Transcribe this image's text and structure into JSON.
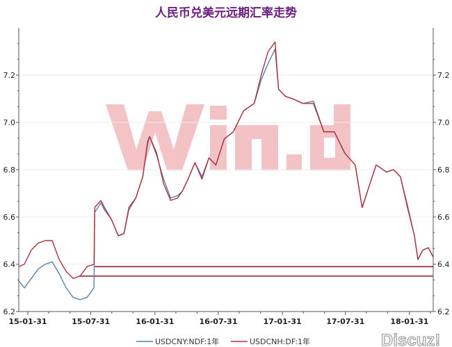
{
  "title": "人民币兑美元远期汇率走势",
  "watermarks": {
    "brand": "Win.d",
    "forum": "Discuz!"
  },
  "chart_data": {
    "type": "line",
    "title": "人民币兑美元远期汇率走势",
    "xlabel": "",
    "ylabel": "",
    "ylim": [
      6.2,
      7.4
    ],
    "y_ticks": [
      "6.2",
      "6.4",
      "6.6",
      "6.8",
      "7.0",
      "7.2"
    ],
    "y_axes": "left and right (mirrored)",
    "x_ticks": [
      "15-01-31",
      "15-07-31",
      "16-01-31",
      "16-07-31",
      "17-01-31",
      "17-07-31",
      "18-01-31"
    ],
    "x_tick_dates": [
      "2015-01-31",
      "2015-07-31",
      "2016-01-31",
      "2016-07-31",
      "2017-01-31",
      "2017-07-31",
      "2018-01-31"
    ],
    "xlim": [
      "2015-01-05",
      "2018-04-09"
    ],
    "grid": "horizontal",
    "legend": "bottom",
    "series": [
      {
        "name": "USDCNY:NDF:1年",
        "color": "#5b7fa6",
        "points": [
          [
            "2015-01-05",
            6.33
          ],
          [
            "2015-01-21",
            6.3
          ],
          [
            "2015-02-10",
            6.34
          ],
          [
            "2015-03-02",
            6.38
          ],
          [
            "2015-03-22",
            6.4
          ],
          [
            "2015-04-11",
            6.41
          ],
          [
            "2015-05-01",
            6.36
          ],
          [
            "2015-05-21",
            6.3
          ],
          [
            "2015-06-10",
            6.26
          ],
          [
            "2015-06-30",
            6.25
          ],
          [
            "2015-07-20",
            6.26
          ],
          [
            "2015-08-09",
            6.3
          ],
          [
            "2015-08-11",
            6.62
          ],
          [
            "2015-08-29",
            6.66
          ],
          [
            "2015-09-08",
            6.63
          ],
          [
            "2015-09-28",
            6.59
          ],
          [
            "2015-10-18",
            6.52
          ],
          [
            "2015-11-03",
            6.53
          ],
          [
            "2015-11-17",
            6.63
          ],
          [
            "2015-12-07",
            6.68
          ],
          [
            "2015-12-27",
            6.77
          ],
          [
            "2016-01-10",
            6.91
          ],
          [
            "2016-01-16",
            6.94
          ],
          [
            "2016-02-05",
            6.86
          ],
          [
            "2016-02-25",
            6.76
          ],
          [
            "2016-03-16",
            6.68
          ],
          [
            "2016-04-05",
            6.69
          ],
          [
            "2016-04-19",
            6.71
          ],
          [
            "2016-05-05",
            6.76
          ],
          [
            "2016-05-25",
            6.83
          ],
          [
            "2016-06-14",
            6.77
          ],
          [
            "2016-07-04",
            6.85
          ],
          [
            "2016-07-24",
            6.82
          ],
          [
            "2016-08-17",
            6.93
          ],
          [
            "2016-09-12",
            6.96
          ],
          [
            "2016-10-12",
            7.05
          ],
          [
            "2016-11-11",
            7.08
          ],
          [
            "2016-12-01",
            7.18
          ],
          [
            "2016-12-21",
            7.25
          ],
          [
            "2017-01-10",
            7.31
          ],
          [
            "2017-01-20",
            7.14
          ],
          [
            "2017-02-09",
            7.11
          ],
          [
            "2017-03-01",
            7.1
          ],
          [
            "2017-03-31",
            7.08
          ],
          [
            "2017-04-30",
            7.09
          ],
          [
            "2017-05-30",
            6.96
          ],
          [
            "2017-06-29",
            6.96
          ],
          [
            "2017-07-29",
            6.87
          ],
          [
            "2017-08-28",
            6.82
          ],
          [
            "2017-09-17",
            6.64
          ],
          [
            "2017-10-07",
            6.73
          ],
          [
            "2017-10-27",
            6.82
          ],
          [
            "2017-11-26",
            6.79
          ],
          [
            "2017-12-16",
            6.8
          ],
          [
            "2018-01-05",
            6.77
          ],
          [
            "2018-01-25",
            6.65
          ],
          [
            "2018-02-14",
            6.52
          ],
          [
            "2018-02-24",
            6.42
          ],
          [
            "2018-03-10",
            6.46
          ],
          [
            "2018-03-26",
            6.47
          ],
          [
            "2018-04-09",
            6.43
          ]
        ]
      },
      {
        "name": "USDCNH:DF:1年",
        "color": "#b03040",
        "points": [
          [
            "2015-01-05",
            6.39
          ],
          [
            "2015-01-21",
            6.4
          ],
          [
            "2015-02-10",
            6.46
          ],
          [
            "2015-03-02",
            6.49
          ],
          [
            "2015-03-22",
            6.5
          ],
          [
            "2015-04-11",
            6.5
          ],
          [
            "2015-05-01",
            6.42
          ],
          [
            "2015-05-21",
            6.37
          ],
          [
            "2015-06-10",
            6.34
          ],
          [
            "2015-06-30",
            6.35
          ],
          [
            "2015-07-20",
            6.39
          ],
          [
            "2015-08-09",
            6.4
          ],
          [
            "2015-08-11",
            6.64
          ],
          [
            "2015-08-29",
            6.67
          ],
          [
            "2015-09-08",
            6.64
          ],
          [
            "2015-09-28",
            6.59
          ],
          [
            "2015-10-18",
            6.52
          ],
          [
            "2015-11-03",
            6.53
          ],
          [
            "2015-11-17",
            6.64
          ],
          [
            "2015-12-07",
            6.68
          ],
          [
            "2015-12-27",
            6.77
          ],
          [
            "2016-01-10",
            6.92
          ],
          [
            "2016-01-16",
            6.94
          ],
          [
            "2016-02-05",
            6.87
          ],
          [
            "2016-02-25",
            6.74
          ],
          [
            "2016-03-16",
            6.67
          ],
          [
            "2016-04-05",
            6.68
          ],
          [
            "2016-04-19",
            6.71
          ],
          [
            "2016-05-05",
            6.76
          ],
          [
            "2016-05-25",
            6.83
          ],
          [
            "2016-06-14",
            6.76
          ],
          [
            "2016-07-04",
            6.85
          ],
          [
            "2016-07-24",
            6.82
          ],
          [
            "2016-08-17",
            6.93
          ],
          [
            "2016-09-12",
            6.96
          ],
          [
            "2016-10-12",
            7.05
          ],
          [
            "2016-11-11",
            7.08
          ],
          [
            "2016-12-01",
            7.2
          ],
          [
            "2016-12-21",
            7.3
          ],
          [
            "2017-01-10",
            7.34
          ],
          [
            "2017-01-20",
            7.14
          ],
          [
            "2017-02-09",
            7.11
          ],
          [
            "2017-03-01",
            7.1
          ],
          [
            "2017-03-31",
            7.08
          ],
          [
            "2017-04-30",
            7.08
          ],
          [
            "2017-05-30",
            6.96
          ],
          [
            "2017-06-29",
            6.96
          ],
          [
            "2017-07-29",
            6.87
          ],
          [
            "2017-08-28",
            6.82
          ],
          [
            "2017-09-17",
            6.64
          ],
          [
            "2017-10-07",
            6.73
          ],
          [
            "2017-10-27",
            6.82
          ],
          [
            "2017-11-26",
            6.79
          ],
          [
            "2017-12-16",
            6.8
          ],
          [
            "2018-01-05",
            6.77
          ],
          [
            "2018-01-25",
            6.64
          ],
          [
            "2018-02-14",
            6.52
          ],
          [
            "2018-02-24",
            6.42
          ],
          [
            "2018-03-10",
            6.46
          ],
          [
            "2018-03-26",
            6.47
          ],
          [
            "2018-04-09",
            6.43
          ]
        ]
      }
    ],
    "reference_lines": [
      {
        "value": 6.39,
        "from": "2015-08-11",
        "color": "#8b1a2a"
      },
      {
        "value": 6.35,
        "from": "2015-06-27",
        "color": "#8b1a2a"
      }
    ]
  }
}
